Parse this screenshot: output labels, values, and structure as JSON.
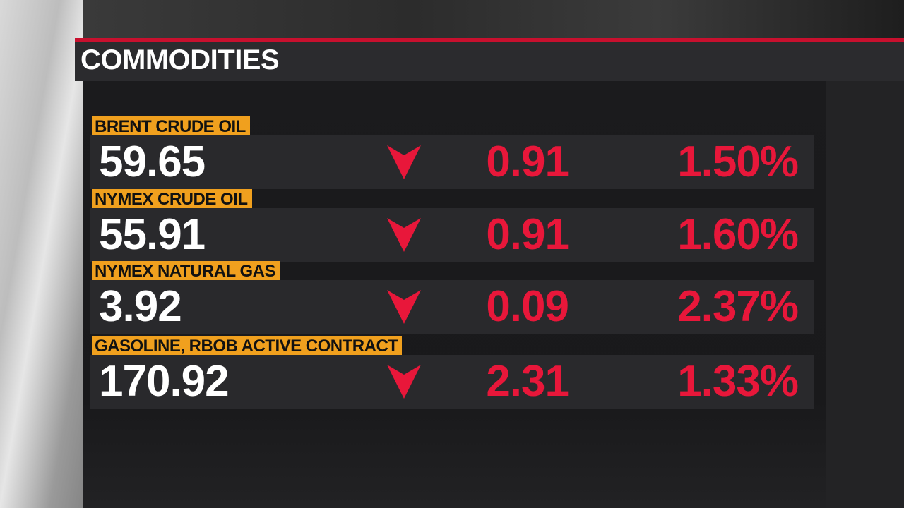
{
  "header": {
    "title": "COMMODITIES"
  },
  "table": {
    "rows": [
      {
        "name": "BRENT CRUDE OIL",
        "price": "59.65",
        "change": "0.91",
        "percent": "1.50%"
      },
      {
        "name": "NYMEX CRUDE OIL",
        "price": "55.91",
        "change": "0.91",
        "percent": "1.60%"
      },
      {
        "name": "NYMEX NATURAL GAS",
        "price": "3.92",
        "change": "0.09",
        "percent": "2.37%"
      },
      {
        "name": "GASOLINE, RBOB ACTIVE CONTRACT",
        "price": "170.92",
        "change": "2.31",
        "percent": "1.33%"
      }
    ]
  }
}
